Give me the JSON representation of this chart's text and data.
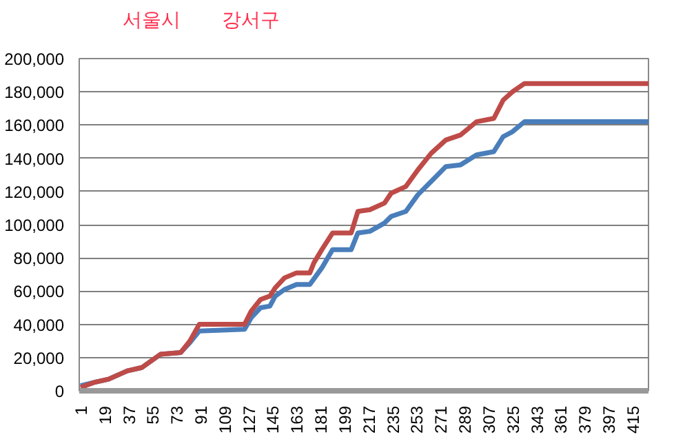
{
  "chart_data": {
    "type": "line",
    "annotations": [
      "서울시",
      "강서구"
    ],
    "xlim": [
      0,
      427
    ],
    "xticks": [
      1,
      19,
      37,
      55,
      73,
      91,
      109,
      127,
      145,
      163,
      181,
      199,
      217,
      235,
      253,
      271,
      289,
      307,
      325,
      343,
      361,
      379,
      397,
      415
    ],
    "ylim": [
      0,
      200000
    ],
    "yticks": [
      {
        "value": 0,
        "label": "0"
      },
      {
        "value": 20000,
        "label": "20,000"
      },
      {
        "value": 40000,
        "label": "40,000"
      },
      {
        "value": 60000,
        "label": "60,000"
      },
      {
        "value": 80000,
        "label": "80,000"
      },
      {
        "value": 100000,
        "label": "100,000"
      },
      {
        "value": 120000,
        "label": "120,000"
      },
      {
        "value": 140000,
        "label": "140,000"
      },
      {
        "value": 160000,
        "label": "160,000"
      },
      {
        "value": 180000,
        "label": "180,000"
      },
      {
        "value": 200000,
        "label": "200,000"
      }
    ],
    "grid": "y",
    "marker": "none",
    "line_style": "solid",
    "series": [
      {
        "color": "#4a7ebb",
        "x": [
          1,
          11,
          22,
          36,
          47,
          61,
          76,
          83,
          90,
          124,
          129,
          136,
          143,
          147,
          154,
          163,
          173,
          182,
          190,
          204,
          209,
          218,
          229,
          234,
          245,
          254,
          264,
          275,
          286,
          298,
          311,
          318,
          325,
          334,
          427
        ],
        "values": [
          3000,
          5000,
          7000,
          12000,
          14000,
          22000,
          23000,
          29000,
          36000,
          37000,
          44000,
          50000,
          51000,
          57000,
          61000,
          64000,
          64000,
          74000,
          85000,
          85000,
          95000,
          96000,
          101000,
          105000,
          108000,
          118000,
          126000,
          135000,
          136000,
          142000,
          144000,
          153000,
          156000,
          162000,
          162000
        ]
      },
      {
        "color": "#be4b48",
        "x": [
          1,
          11,
          22,
          36,
          47,
          61,
          76,
          83,
          90,
          124,
          129,
          136,
          143,
          147,
          154,
          163,
          173,
          176,
          182,
          190,
          204,
          209,
          218,
          229,
          234,
          245,
          254,
          264,
          275,
          286,
          298,
          311,
          318,
          325,
          334,
          427
        ],
        "values": [
          2000,
          5000,
          7000,
          12000,
          14000,
          22000,
          23000,
          30000,
          40000,
          40000,
          48000,
          55000,
          57000,
          62000,
          68000,
          71000,
          71000,
          77000,
          85000,
          95000,
          95000,
          108000,
          109000,
          113000,
          119000,
          123000,
          133000,
          143000,
          151000,
          154000,
          162000,
          164000,
          175000,
          180000,
          185000,
          185000
        ]
      }
    ]
  }
}
